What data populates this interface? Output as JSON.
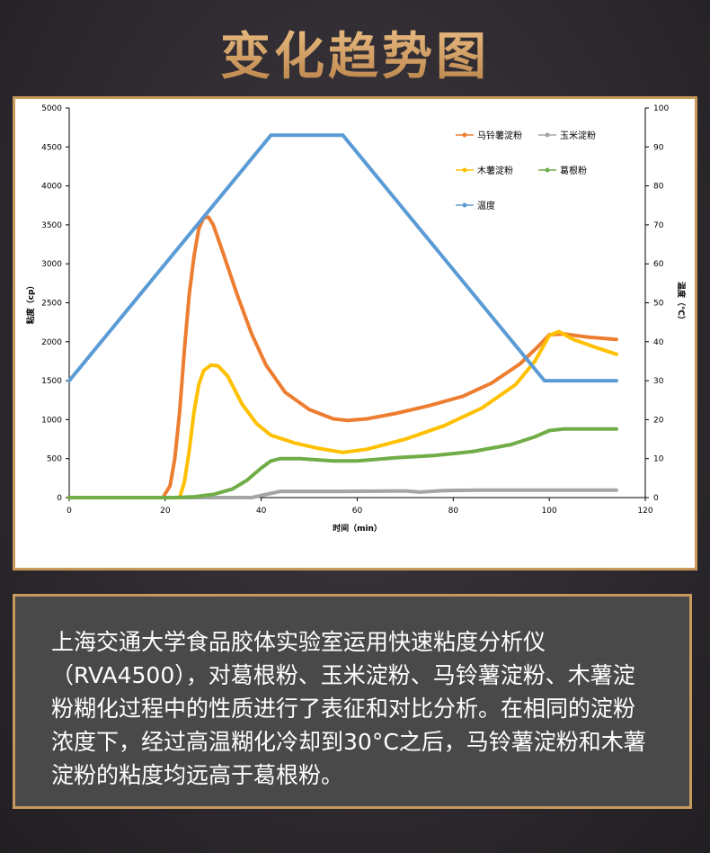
{
  "header": {
    "title": "变化趋势图"
  },
  "description": "上海交通大学食品胶体实验室运用快速粘度分析仪（RVA4500），对葛根粉、玉米淀粉、马铃薯淀粉、木薯淀粉糊化过程中的性质进行了表征和对比分析。在相同的淀粉浓度下，经过高温糊化冷却到30°C之后，马铃薯淀粉和木薯淀粉的粘度均远高于葛根粉。",
  "chart_data": {
    "type": "line",
    "xlabel": "时间（min）",
    "ylabel": "粘度（cp）",
    "y2label": "温度（℃）",
    "xlim": [
      0,
      120
    ],
    "ylim": [
      0,
      5000
    ],
    "y2lim": [
      0,
      100
    ],
    "xticks": [
      0,
      20,
      40,
      60,
      80,
      100,
      120
    ],
    "yticks": [
      0,
      500,
      1000,
      1500,
      2000,
      2500,
      3000,
      3500,
      4000,
      4500,
      5000
    ],
    "y2ticks": [
      0,
      10,
      20,
      30,
      40,
      50,
      60,
      70,
      80,
      90,
      100
    ],
    "grid": false,
    "legend_position": "top-right",
    "series": [
      {
        "name": "马铃薯淀粉",
        "color": "#ed7d31",
        "axis": "left",
        "points": [
          [
            0,
            0
          ],
          [
            19.5,
            0
          ],
          [
            21,
            150
          ],
          [
            22,
            500
          ],
          [
            23,
            1100
          ],
          [
            24,
            1900
          ],
          [
            25,
            2600
          ],
          [
            26,
            3100
          ],
          [
            27,
            3450
          ],
          [
            28,
            3590
          ],
          [
            29,
            3600
          ],
          [
            30,
            3500
          ],
          [
            32,
            3150
          ],
          [
            35,
            2600
          ],
          [
            38,
            2100
          ],
          [
            41,
            1700
          ],
          [
            45,
            1350
          ],
          [
            50,
            1130
          ],
          [
            55,
            1010
          ],
          [
            58,
            990
          ],
          [
            62,
            1010
          ],
          [
            68,
            1080
          ],
          [
            75,
            1180
          ],
          [
            82,
            1300
          ],
          [
            88,
            1470
          ],
          [
            94,
            1720
          ],
          [
            98,
            1960
          ],
          [
            100,
            2090
          ],
          [
            103,
            2100
          ],
          [
            108,
            2060
          ],
          [
            114,
            2030
          ]
        ]
      },
      {
        "name": "玉米淀粉",
        "color": "#a5a5a5",
        "axis": "left",
        "points": [
          [
            0,
            0
          ],
          [
            38,
            0
          ],
          [
            41,
            40
          ],
          [
            44,
            80
          ],
          [
            57,
            80
          ],
          [
            70,
            85
          ],
          [
            73,
            70
          ],
          [
            78,
            90
          ],
          [
            85,
            95
          ],
          [
            100,
            95
          ],
          [
            114,
            95
          ]
        ]
      },
      {
        "name": "木薯淀粉",
        "color": "#ffc000",
        "axis": "left",
        "points": [
          [
            0,
            0
          ],
          [
            23,
            0
          ],
          [
            24,
            200
          ],
          [
            25,
            600
          ],
          [
            26,
            1100
          ],
          [
            27,
            1450
          ],
          [
            28,
            1630
          ],
          [
            29.5,
            1700
          ],
          [
            31,
            1690
          ],
          [
            33,
            1560
          ],
          [
            36,
            1200
          ],
          [
            39,
            950
          ],
          [
            42,
            800
          ],
          [
            47,
            700
          ],
          [
            52,
            630
          ],
          [
            57,
            580
          ],
          [
            62,
            620
          ],
          [
            70,
            750
          ],
          [
            78,
            920
          ],
          [
            86,
            1150
          ],
          [
            93,
            1450
          ],
          [
            97,
            1750
          ],
          [
            100,
            2080
          ],
          [
            102,
            2130
          ],
          [
            105,
            2030
          ],
          [
            110,
            1920
          ],
          [
            114,
            1840
          ]
        ]
      },
      {
        "name": "葛根粉",
        "color": "#70ad47",
        "axis": "left",
        "points": [
          [
            0,
            0
          ],
          [
            22,
            0
          ],
          [
            26,
            10
          ],
          [
            30,
            40
          ],
          [
            34,
            110
          ],
          [
            37,
            220
          ],
          [
            40,
            380
          ],
          [
            42,
            470
          ],
          [
            44,
            500
          ],
          [
            48,
            500
          ],
          [
            55,
            470
          ],
          [
            60,
            470
          ],
          [
            68,
            510
          ],
          [
            76,
            540
          ],
          [
            84,
            590
          ],
          [
            92,
            680
          ],
          [
            97,
            780
          ],
          [
            100,
            860
          ],
          [
            103,
            880
          ],
          [
            114,
            880
          ]
        ]
      },
      {
        "name": "温度",
        "color": "#5b9bd5",
        "axis": "right",
        "points": [
          [
            0,
            30
          ],
          [
            42,
            93
          ],
          [
            57,
            93
          ],
          [
            99,
            30
          ],
          [
            114,
            30
          ]
        ]
      }
    ]
  }
}
